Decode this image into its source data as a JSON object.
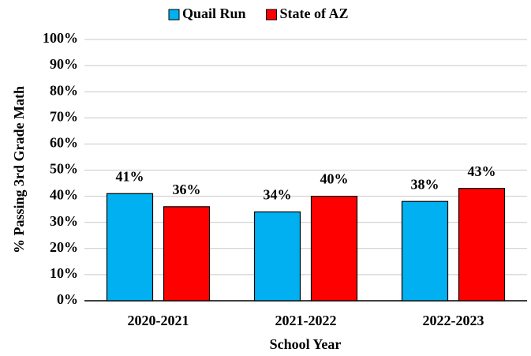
{
  "chart_data": {
    "type": "bar",
    "categories": [
      "2020-2021",
      "2021-2022",
      "2022-2023"
    ],
    "series": [
      {
        "name": "Quail Run",
        "color": "#00b0f0",
        "values": [
          41,
          34,
          38
        ],
        "value_labels": [
          "41%",
          "34%",
          "38%"
        ]
      },
      {
        "name": "State of AZ",
        "color": "#ff0000",
        "values": [
          36,
          40,
          43
        ],
        "value_labels": [
          "36%",
          "40%",
          "43%"
        ]
      }
    ],
    "xlabel": "School Year",
    "ylabel": "% Passing 3rd Grade Math",
    "ylim": [
      0,
      100
    ],
    "yticks": [
      {
        "value": 0,
        "label": "0%"
      },
      {
        "value": 10,
        "label": "10%"
      },
      {
        "value": 20,
        "label": "20%"
      },
      {
        "value": 30,
        "label": "30%"
      },
      {
        "value": 40,
        "label": "40%"
      },
      {
        "value": 50,
        "label": "50%"
      },
      {
        "value": 60,
        "label": "60%"
      },
      {
        "value": 70,
        "label": "70%"
      },
      {
        "value": 80,
        "label": "80%"
      },
      {
        "value": 90,
        "label": "90%"
      },
      {
        "value": 100,
        "label": "100%"
      }
    ],
    "grid": true,
    "legend": "top"
  }
}
